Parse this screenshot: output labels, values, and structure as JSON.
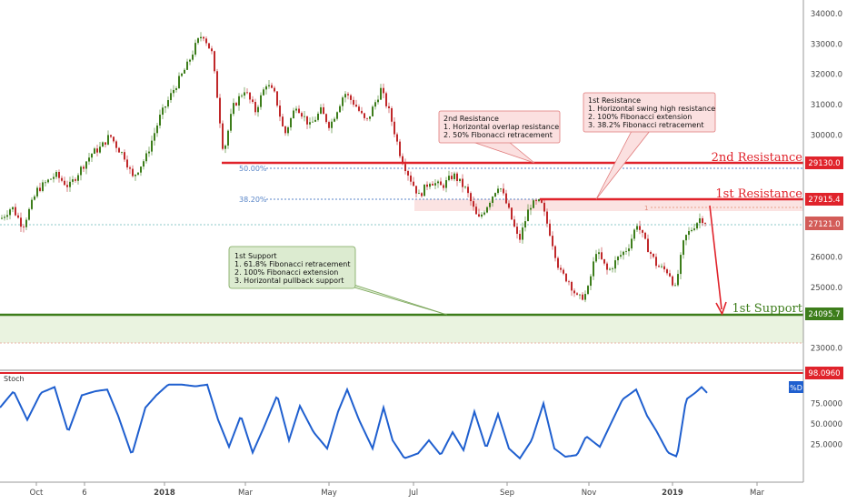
{
  "chart_data": [
    {
      "type": "candlestick",
      "x_ticks": [
        "Oct",
        "6",
        "2018",
        "Mar",
        "May",
        "Jul",
        "Sep",
        "Nov",
        "2019",
        "Mar"
      ],
      "y_ticks": [
        "34000.0",
        "33000.0",
        "32000.0",
        "31000.0",
        "30000.0",
        "26000.0",
        "25000.0",
        "23000.0"
      ],
      "ylim": [
        22600,
        34350
      ],
      "grid": false,
      "price_path": [
        {
          "i": 0,
          "v": 27250
        },
        {
          "i": 12,
          "v": 27650
        },
        {
          "i": 24,
          "v": 27000
        },
        {
          "i": 40,
          "v": 28200
        },
        {
          "i": 60,
          "v": 28700
        },
        {
          "i": 75,
          "v": 28300
        },
        {
          "i": 88,
          "v": 28900
        },
        {
          "i": 100,
          "v": 29400
        },
        {
          "i": 110,
          "v": 29600
        },
        {
          "i": 120,
          "v": 30000
        },
        {
          "i": 128,
          "v": 29600
        },
        {
          "i": 136,
          "v": 29300
        },
        {
          "i": 145,
          "v": 28600
        },
        {
          "i": 160,
          "v": 29300
        },
        {
          "i": 175,
          "v": 30600
        },
        {
          "i": 190,
          "v": 31500
        },
        {
          "i": 205,
          "v": 32300
        },
        {
          "i": 215,
          "v": 33000
        },
        {
          "i": 222,
          "v": 33350
        },
        {
          "i": 232,
          "v": 32700
        },
        {
          "i": 238,
          "v": 31300
        },
        {
          "i": 245,
          "v": 29400
        },
        {
          "i": 255,
          "v": 30900
        },
        {
          "i": 268,
          "v": 31500
        },
        {
          "i": 280,
          "v": 30800
        },
        {
          "i": 292,
          "v": 31700
        },
        {
          "i": 302,
          "v": 31300
        },
        {
          "i": 312,
          "v": 30000
        },
        {
          "i": 325,
          "v": 31000
        },
        {
          "i": 340,
          "v": 30300
        },
        {
          "i": 352,
          "v": 30800
        },
        {
          "i": 362,
          "v": 30300
        },
        {
          "i": 378,
          "v": 31400
        },
        {
          "i": 390,
          "v": 31000
        },
        {
          "i": 402,
          "v": 30400
        },
        {
          "i": 418,
          "v": 31500
        },
        {
          "i": 428,
          "v": 30700
        },
        {
          "i": 440,
          "v": 29300
        },
        {
          "i": 450,
          "v": 28600
        },
        {
          "i": 460,
          "v": 28000
        },
        {
          "i": 472,
          "v": 28500
        },
        {
          "i": 485,
          "v": 28300
        },
        {
          "i": 498,
          "v": 28700
        },
        {
          "i": 512,
          "v": 28200
        },
        {
          "i": 525,
          "v": 27200
        },
        {
          "i": 535,
          "v": 27700
        },
        {
          "i": 548,
          "v": 28400
        },
        {
          "i": 558,
          "v": 27600
        },
        {
          "i": 570,
          "v": 26500
        },
        {
          "i": 582,
          "v": 27700
        },
        {
          "i": 594,
          "v": 27800
        },
        {
          "i": 604,
          "v": 26800
        },
        {
          "i": 615,
          "v": 25500
        },
        {
          "i": 625,
          "v": 25200
        },
        {
          "i": 635,
          "v": 24600
        },
        {
          "i": 645,
          "v": 24800
        },
        {
          "i": 655,
          "v": 26200
        },
        {
          "i": 668,
          "v": 25500
        },
        {
          "i": 680,
          "v": 26000
        },
        {
          "i": 690,
          "v": 26300
        },
        {
          "i": 700,
          "v": 27100
        },
        {
          "i": 710,
          "v": 26400
        },
        {
          "i": 722,
          "v": 25700
        },
        {
          "i": 735,
          "v": 25500
        },
        {
          "i": 742,
          "v": 24950
        },
        {
          "i": 752,
          "v": 26600
        },
        {
          "i": 762,
          "v": 27000
        },
        {
          "i": 770,
          "v": 27300
        },
        {
          "i": 776,
          "v": 27121
        }
      ],
      "levels": [
        {
          "name": "2nd Resistance",
          "value": 29130.0,
          "label": "29130.0",
          "color": "#e0232b"
        },
        {
          "name": "1st Resistance",
          "value": 27915.4,
          "label": "27915.4",
          "color": "#e0232b"
        },
        {
          "name": "current",
          "value": 27121.0,
          "label": "27121.0",
          "color": "#d35c58"
        },
        {
          "name": "1st Support",
          "value": 24095.7,
          "label": "24095.7",
          "color": "#3d7d1b"
        }
      ],
      "fib_levels": [
        {
          "label": "50.00%",
          "value": 29130.0
        },
        {
          "label": "38.20%",
          "value": 27915.4
        }
      ],
      "annotations": {
        "resistance2_title": "2nd Resistance",
        "resistance1_title": "1st Resistance",
        "support1_title": "1st Support",
        "projection_label": "1",
        "res2_box": [
          "2nd Resistance",
          "1. Horizontal overlap resistance",
          "2. 50% Fibonacci retracement"
        ],
        "res1_box": [
          "1st Resistance",
          "1. Horizontal swing high resistance",
          "2. 100% Fibonacci extension",
          "3. 38.2% Fibonacci retracement"
        ],
        "sup1_box": [
          "1st Support",
          "1. 61.8% Fibonacci retracement",
          "2. 100% Fibonacci extension",
          "3. Horizontal pullback support"
        ]
      },
      "colors": {
        "up": "#3d7d1b",
        "down": "#c0282a",
        "resistance": "#e0232b",
        "support": "#3d7d1b",
        "fib": "#5a86c8"
      }
    },
    {
      "type": "line",
      "title": "Stoch",
      "series": [
        {
          "name": "%D",
          "color": "#1f5fcf"
        }
      ],
      "y_ticks": [
        "75.0000",
        "50.0000",
        "25.0000"
      ],
      "ylim": [
        0,
        100
      ],
      "overbought": {
        "value": 98.096,
        "label": "98.0960",
        "color": "#e0232b"
      },
      "stoch_path": [
        {
          "i": 0,
          "v": 70
        },
        {
          "i": 15,
          "v": 90
        },
        {
          "i": 30,
          "v": 55
        },
        {
          "i": 45,
          "v": 88
        },
        {
          "i": 60,
          "v": 95
        },
        {
          "i": 75,
          "v": 40
        },
        {
          "i": 90,
          "v": 85
        },
        {
          "i": 105,
          "v": 90
        },
        {
          "i": 118,
          "v": 92
        },
        {
          "i": 130,
          "v": 60
        },
        {
          "i": 145,
          "v": 12
        },
        {
          "i": 160,
          "v": 70
        },
        {
          "i": 172,
          "v": 85
        },
        {
          "i": 185,
          "v": 98
        },
        {
          "i": 200,
          "v": 98
        },
        {
          "i": 215,
          "v": 96
        },
        {
          "i": 228,
          "v": 98
        },
        {
          "i": 240,
          "v": 55
        },
        {
          "i": 252,
          "v": 22
        },
        {
          "i": 265,
          "v": 60
        },
        {
          "i": 278,
          "v": 15
        },
        {
          "i": 290,
          "v": 45
        },
        {
          "i": 305,
          "v": 85
        },
        {
          "i": 318,
          "v": 30
        },
        {
          "i": 330,
          "v": 72
        },
        {
          "i": 345,
          "v": 40
        },
        {
          "i": 360,
          "v": 20
        },
        {
          "i": 372,
          "v": 65
        },
        {
          "i": 382,
          "v": 92
        },
        {
          "i": 395,
          "v": 55
        },
        {
          "i": 410,
          "v": 20
        },
        {
          "i": 422,
          "v": 70
        },
        {
          "i": 432,
          "v": 30
        },
        {
          "i": 445,
          "v": 8
        },
        {
          "i": 460,
          "v": 14
        },
        {
          "i": 472,
          "v": 30
        },
        {
          "i": 485,
          "v": 12
        },
        {
          "i": 498,
          "v": 40
        },
        {
          "i": 510,
          "v": 18
        },
        {
          "i": 522,
          "v": 65
        },
        {
          "i": 535,
          "v": 20
        },
        {
          "i": 548,
          "v": 62
        },
        {
          "i": 560,
          "v": 20
        },
        {
          "i": 572,
          "v": 8
        },
        {
          "i": 585,
          "v": 30
        },
        {
          "i": 598,
          "v": 75
        },
        {
          "i": 610,
          "v": 20
        },
        {
          "i": 622,
          "v": 10
        },
        {
          "i": 635,
          "v": 12
        },
        {
          "i": 645,
          "v": 35
        },
        {
          "i": 660,
          "v": 22
        },
        {
          "i": 672,
          "v": 50
        },
        {
          "i": 685,
          "v": 80
        },
        {
          "i": 700,
          "v": 92
        },
        {
          "i": 712,
          "v": 60
        },
        {
          "i": 722,
          "v": 42
        },
        {
          "i": 735,
          "v": 15
        },
        {
          "i": 745,
          "v": 10
        },
        {
          "i": 755,
          "v": 80
        },
        {
          "i": 765,
          "v": 88
        },
        {
          "i": 772,
          "v": 95
        },
        {
          "i": 778,
          "v": 88
        }
      ]
    }
  ]
}
